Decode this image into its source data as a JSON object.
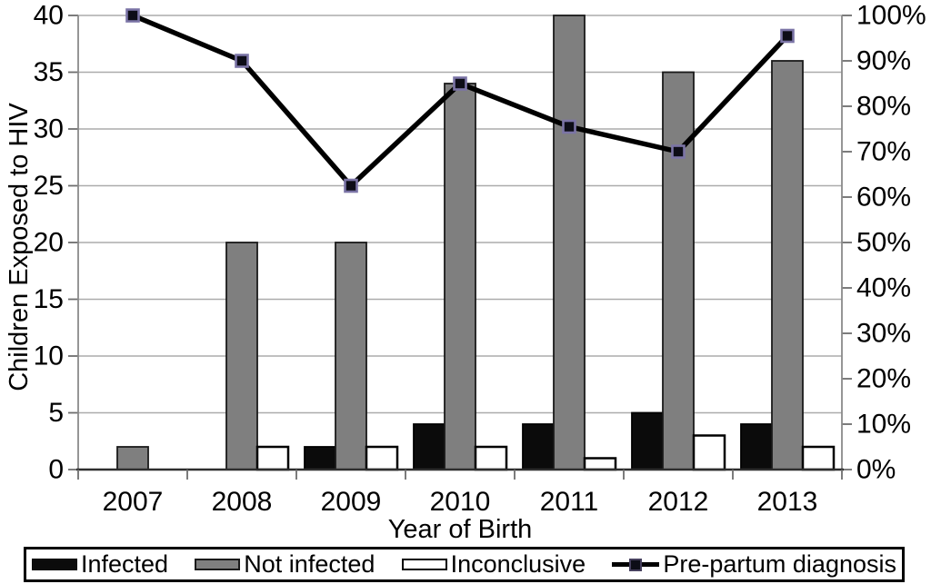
{
  "chart_data": {
    "type": "bar+line combo",
    "title": "",
    "xlabel": "Year of Birth",
    "categories": [
      "2007",
      "2008",
      "2009",
      "2010",
      "2011",
      "2012",
      "2013"
    ],
    "left_axis": {
      "label": "Children Exposed to HIV",
      "min": 0,
      "max": 40,
      "tick_step": 5,
      "ticks": [
        "40",
        "35",
        "30",
        "25",
        "20",
        "15",
        "10",
        "5",
        "0"
      ]
    },
    "right_axis": {
      "min": 0,
      "max": 100,
      "tick_step": 10,
      "unit": "%",
      "ticks": [
        "100%",
        "90%",
        "80%",
        "70%",
        "60%",
        "50%",
        "40%",
        "30%",
        "20%",
        "10%",
        "0%"
      ]
    },
    "series": [
      {
        "name": "Infected",
        "type": "bar",
        "axis": "left",
        "color": "#0b0b0b",
        "border": "#000000",
        "values": [
          0,
          0,
          2,
          4,
          4,
          5,
          4
        ]
      },
      {
        "name": "Not infected",
        "type": "bar",
        "axis": "left",
        "color": "#7f7f7f",
        "border": "#1a1a1a",
        "values": [
          2,
          20,
          20,
          34,
          40,
          35,
          36
        ]
      },
      {
        "name": "Inconclusive",
        "type": "bar",
        "axis": "left",
        "color": "#ffffff",
        "border": "#000000",
        "values": [
          0,
          2,
          2,
          2,
          1,
          3,
          2
        ]
      },
      {
        "name": "Pre-partum diagnosis",
        "type": "line",
        "axis": "right",
        "color": "#000000",
        "marker": "square",
        "marker_fill": "#0d0d17",
        "marker_border": "#7b74a6",
        "values_pct": [
          100,
          90,
          62.5,
          85,
          75.5,
          70,
          95.5
        ]
      }
    ],
    "grid": "horizontal gridlines at left-axis ticks",
    "legend_position": "bottom boxed"
  }
}
